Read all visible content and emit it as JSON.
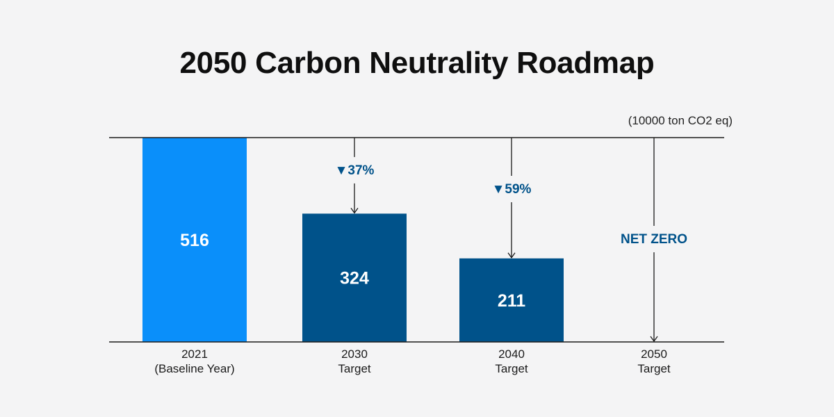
{
  "title": "2050 Carbon Neutrality Roadmap",
  "unit_label": "(10000 ton CO2 eq)",
  "colors": {
    "baseline": "#0a8ffa",
    "target": "#00528a",
    "accent_text": "#00528a",
    "axis": "#1a1a1a",
    "bar_label": "#ffffff",
    "background": "#f4f4f5"
  },
  "chart_data": {
    "type": "bar",
    "title": "2050 Carbon Neutrality Roadmap",
    "ylabel": "(10000 ton CO2 eq)",
    "ylim": [
      0,
      516
    ],
    "grid": false,
    "categories": [
      [
        "2021",
        "(Baseline Year)"
      ],
      [
        "2030",
        "Target"
      ],
      [
        "2040",
        "Target"
      ],
      [
        "2050",
        "Target"
      ]
    ],
    "values": [
      516,
      324,
      211,
      0
    ],
    "value_labels": [
      "516",
      "324",
      "211",
      ""
    ],
    "bar_colors": [
      "baseline",
      "target",
      "target",
      "none"
    ],
    "reductions": [
      {
        "category_index": 1,
        "label": "▼37%"
      },
      {
        "category_index": 2,
        "label": "▼59%"
      },
      {
        "category_index": 3,
        "label": "NET ZERO"
      }
    ]
  }
}
